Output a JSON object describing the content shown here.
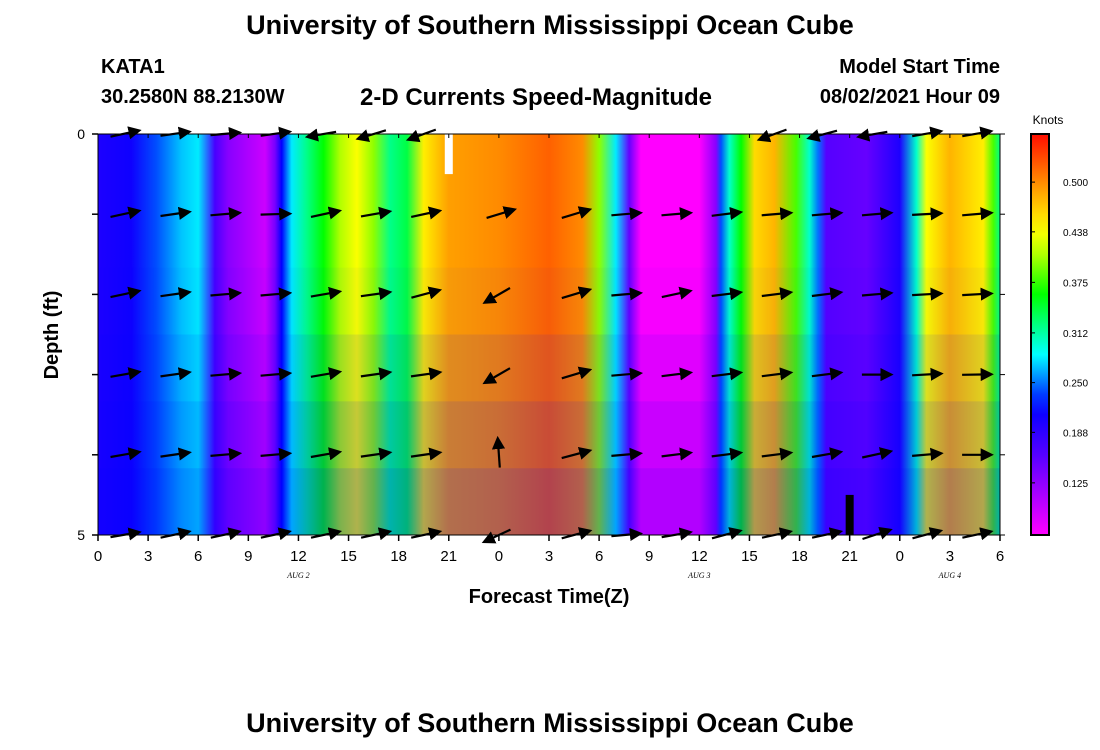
{
  "header": {
    "title": "University of Southern Mississippi Ocean Cube",
    "station_id": "KATA1",
    "station_coords": "30.2580N  88.2130W",
    "chart_title": "2-D Currents Speed-Magnitude",
    "model_label": "Model Start Time",
    "model_time": "08/02/2021 Hour 09"
  },
  "footer": {
    "title": "University of Southern Mississippi Ocean Cube"
  },
  "chart_data": {
    "type": "heatmap",
    "title": "2-D Currents Speed-Magnitude",
    "xlabel": "Forecast Time(Z)",
    "ylabel": "Depth (ft)",
    "x_hours": [
      0,
      3,
      6,
      9,
      12,
      15,
      18,
      21,
      24,
      27,
      30,
      33,
      36,
      39,
      42,
      45,
      48,
      51,
      54
    ],
    "x_tick_labels": [
      "0",
      "3",
      "6",
      "9",
      "12",
      "15",
      "18",
      "21",
      "0",
      "3",
      "6",
      "9",
      "12",
      "15",
      "18",
      "21",
      "0",
      "3",
      "6"
    ],
    "xlim": [
      0,
      54
    ],
    "y_tick_labels": [
      "0",
      "",
      "",
      "",
      "",
      "5"
    ],
    "ylim": [
      0,
      5
    ],
    "date_labels": [
      {
        "hour": 12,
        "text": "AUG  2"
      },
      {
        "hour": 36,
        "text": "AUG  3"
      },
      {
        "hour": 51,
        "text": "AUG  4"
      }
    ],
    "colorbar": {
      "label": "Knots",
      "min": 0.06,
      "max": 0.56,
      "ticks": [
        "0.500",
        "0.438",
        "0.375",
        "0.312",
        "0.250",
        "0.188",
        "0.125"
      ],
      "tick_values": [
        0.5,
        0.438,
        0.375,
        0.312,
        0.25,
        0.188,
        0.125
      ]
    },
    "speed_by_hour": [
      {
        "h": 0,
        "v": 0.2
      },
      {
        "h": 2,
        "v": 0.21
      },
      {
        "h": 3.5,
        "v": 0.24
      },
      {
        "h": 5,
        "v": 0.27
      },
      {
        "h": 6,
        "v": 0.28
      },
      {
        "h": 7,
        "v": 0.17
      },
      {
        "h": 7.8,
        "v": 0.13
      },
      {
        "h": 10,
        "v": 0.09
      },
      {
        "h": 10.6,
        "v": 0.14
      },
      {
        "h": 11,
        "v": 0.22
      },
      {
        "h": 11.6,
        "v": 0.28
      },
      {
        "h": 12.5,
        "v": 0.32
      },
      {
        "h": 13.5,
        "v": 0.36
      },
      {
        "h": 14.5,
        "v": 0.41
      },
      {
        "h": 15.5,
        "v": 0.44
      },
      {
        "h": 16.5,
        "v": 0.4
      },
      {
        "h": 17.5,
        "v": 0.32
      },
      {
        "h": 18.5,
        "v": 0.34
      },
      {
        "h": 19.5,
        "v": 0.45
      },
      {
        "h": 21,
        "v": 0.49
      },
      {
        "h": 24,
        "v": 0.5
      },
      {
        "h": 27,
        "v": 0.52
      },
      {
        "h": 29,
        "v": 0.5
      },
      {
        "h": 30,
        "v": 0.4
      },
      {
        "h": 31,
        "v": 0.28
      },
      {
        "h": 31.8,
        "v": 0.15
      },
      {
        "h": 32.5,
        "v": 0.06
      },
      {
        "h": 36,
        "v": 0.06
      },
      {
        "h": 37,
        "v": 0.13
      },
      {
        "h": 37.3,
        "v": 0.24
      },
      {
        "h": 37.8,
        "v": 0.3
      },
      {
        "h": 38.5,
        "v": 0.36
      },
      {
        "h": 39.3,
        "v": 0.46
      },
      {
        "h": 40.5,
        "v": 0.48
      },
      {
        "h": 41.8,
        "v": 0.38
      },
      {
        "h": 42.6,
        "v": 0.3
      },
      {
        "h": 43.1,
        "v": 0.25
      },
      {
        "h": 43.6,
        "v": 0.16
      },
      {
        "h": 46,
        "v": 0.15
      },
      {
        "h": 48,
        "v": 0.2
      },
      {
        "h": 49,
        "v": 0.3
      },
      {
        "h": 49.6,
        "v": 0.44
      },
      {
        "h": 51,
        "v": 0.48
      },
      {
        "h": 53,
        "v": 0.45
      },
      {
        "h": 53.6,
        "v": 0.38
      },
      {
        "h": 54,
        "v": 0.32
      }
    ],
    "depth_layer_offsets": [
      0.0,
      0.0,
      -0.01,
      -0.04,
      -0.07,
      -0.1
    ],
    "arrows": {
      "hours": [
        1.5,
        4.5,
        7.5,
        10.5,
        13.5,
        16.5,
        19.5,
        24,
        28.5,
        31.5,
        34.5,
        37.5,
        40.5,
        43.5,
        46.5,
        49.5,
        52.5
      ],
      "angles_deg": [
        [
          -12,
          -8,
          -5,
          -8,
          -190,
          -197,
          -200,
          -196,
          -196,
          -12,
          -10,
          -195,
          -200,
          -195,
          -190,
          -10,
          -10
        ],
        [
          -12,
          -8,
          -5,
          -2,
          -12,
          -10,
          -12,
          -17,
          -17,
          -5,
          -5,
          -7,
          -5,
          -5,
          -5,
          -3,
          -5
        ],
        [
          -12,
          -8,
          -5,
          -5,
          -10,
          -8,
          -15,
          150,
          -17,
          -5,
          -12,
          -7,
          -7,
          -7,
          -5,
          -3,
          -3
        ],
        [
          -10,
          -8,
          -5,
          -5,
          -10,
          -8,
          -8,
          150,
          -17,
          -5,
          -7,
          -7,
          -7,
          -7,
          0,
          -3,
          -1
        ],
        [
          -10,
          -8,
          -5,
          -5,
          -10,
          -8,
          -8,
          -94,
          -15,
          -5,
          -7,
          -7,
          -7,
          -10,
          -12,
          -5,
          0
        ],
        [
          -10,
          -12,
          -12,
          -12,
          -12,
          -12,
          -12,
          155,
          -15,
          -5,
          -10,
          -15,
          -12,
          -12,
          -18,
          -15,
          -12
        ]
      ],
      "lengths": [
        [
          0.8,
          0.8,
          0.8,
          0.8,
          0.8,
          0.8,
          0.8,
          0.0,
          0.0,
          0.0,
          0.0,
          0.0,
          0.8,
          0.8,
          0.8,
          0.8,
          0.8
        ],
        [
          0.8,
          0.8,
          0.8,
          0.8,
          0.8,
          0.8,
          0.8,
          0.8,
          0.8,
          0.8,
          0.8,
          0.8,
          0.8,
          0.8,
          0.8,
          0.8,
          0.8
        ],
        [
          0.8,
          0.8,
          0.8,
          0.8,
          0.8,
          0.8,
          0.8,
          0.8,
          0.8,
          0.8,
          0.8,
          0.8,
          0.8,
          0.8,
          0.8,
          0.8,
          0.8
        ],
        [
          0.8,
          0.8,
          0.8,
          0.8,
          0.8,
          0.8,
          0.8,
          0.8,
          0.8,
          0.8,
          0.8,
          0.8,
          0.8,
          0.8,
          0.8,
          0.8,
          0.8
        ],
        [
          0.8,
          0.8,
          0.8,
          0.8,
          0.8,
          0.8,
          0.8,
          0.8,
          0.8,
          0.8,
          0.8,
          0.8,
          0.8,
          0.8,
          0.8,
          0.8,
          0.8
        ],
        [
          0.8,
          0.8,
          0.8,
          0.8,
          0.8,
          0.8,
          0.8,
          0.8,
          0.8,
          0.8,
          0.8,
          0.8,
          0.8,
          0.8,
          0.8,
          0.8,
          0.8
        ]
      ]
    },
    "markers": [
      {
        "hour": 21,
        "depth_from": 0.0,
        "depth_to": 0.5,
        "color": "#ffffff"
      },
      {
        "hour": 45,
        "depth_from": 4.5,
        "depth_to": 5.0,
        "color": "#000000"
      }
    ]
  }
}
